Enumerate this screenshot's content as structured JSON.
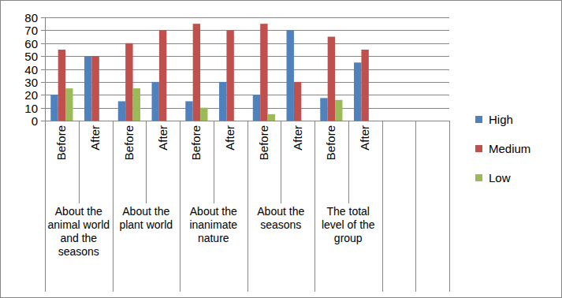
{
  "chart_data": {
    "type": "bar",
    "categories": [
      "Before",
      "After",
      "Before",
      "After",
      "Before",
      "After",
      "Before",
      "After",
      "Before",
      "After",
      null,
      null
    ],
    "group_labels": [
      "About the animal world and the seasons",
      "About the plant world",
      "About the inanimate nature",
      "About the seasons",
      "The total level of the group"
    ],
    "series": [
      {
        "name": "High",
        "color": "#4f81bd",
        "values": [
          20,
          50,
          15,
          30,
          15,
          30,
          20,
          70,
          17.5,
          45,
          null,
          null
        ]
      },
      {
        "name": "Medium",
        "color": "#c0504d",
        "values": [
          55,
          50,
          60,
          70,
          75,
          70,
          75,
          30,
          65,
          55,
          null,
          null
        ]
      },
      {
        "name": "Low",
        "color": "#9bbb59",
        "values": [
          25,
          0,
          25,
          0,
          10,
          0,
          5,
          0,
          16,
          0,
          null,
          null
        ]
      }
    ],
    "ylim": [
      0,
      80
    ],
    "yticks": [
      0,
      10,
      20,
      30,
      40,
      50,
      60,
      70,
      80
    ],
    "grid": true,
    "legend": "right"
  }
}
